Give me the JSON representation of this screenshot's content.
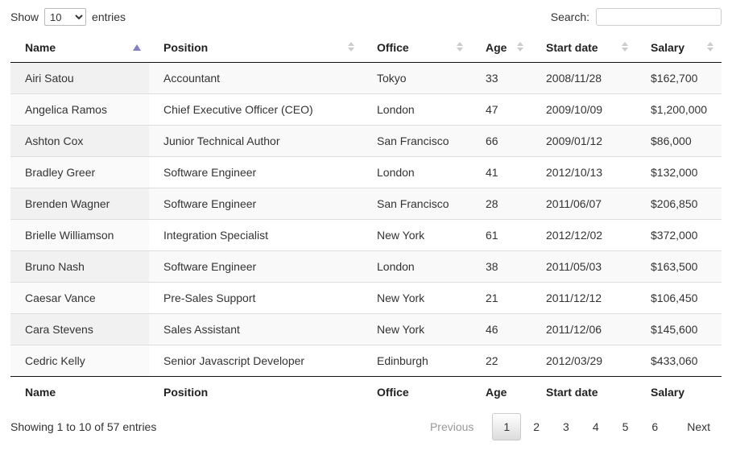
{
  "controls": {
    "show_label": "Show",
    "entries_label": "entries",
    "page_length": "10",
    "search_label": "Search:",
    "search_value": ""
  },
  "table": {
    "columns": [
      {
        "label": "Name",
        "sort": "asc"
      },
      {
        "label": "Position",
        "sort": "none"
      },
      {
        "label": "Office",
        "sort": "none"
      },
      {
        "label": "Age",
        "sort": "none"
      },
      {
        "label": "Start date",
        "sort": "none"
      },
      {
        "label": "Salary",
        "sort": "none"
      }
    ],
    "rows": [
      [
        "Airi Satou",
        "Accountant",
        "Tokyo",
        "33",
        "2008/11/28",
        "$162,700"
      ],
      [
        "Angelica Ramos",
        "Chief Executive Officer (CEO)",
        "London",
        "47",
        "2009/10/09",
        "$1,200,000"
      ],
      [
        "Ashton Cox",
        "Junior Technical Author",
        "San Francisco",
        "66",
        "2009/01/12",
        "$86,000"
      ],
      [
        "Bradley Greer",
        "Software Engineer",
        "London",
        "41",
        "2012/10/13",
        "$132,000"
      ],
      [
        "Brenden Wagner",
        "Software Engineer",
        "San Francisco",
        "28",
        "2011/06/07",
        "$206,850"
      ],
      [
        "Brielle Williamson",
        "Integration Specialist",
        "New York",
        "61",
        "2012/12/02",
        "$372,000"
      ],
      [
        "Bruno Nash",
        "Software Engineer",
        "London",
        "38",
        "2011/05/03",
        "$163,500"
      ],
      [
        "Caesar Vance",
        "Pre-Sales Support",
        "New York",
        "21",
        "2011/12/12",
        "$106,450"
      ],
      [
        "Cara Stevens",
        "Sales Assistant",
        "New York",
        "46",
        "2011/12/06",
        "$145,600"
      ],
      [
        "Cedric Kelly",
        "Senior Javascript Developer",
        "Edinburgh",
        "22",
        "2012/03/29",
        "$433,060"
      ]
    ],
    "footer_columns": [
      "Name",
      "Position",
      "Office",
      "Age",
      "Start date",
      "Salary"
    ]
  },
  "info_text": "Showing 1 to 10 of 57 entries",
  "pagination": {
    "previous_label": "Previous",
    "next_label": "Next",
    "pages": [
      "1",
      "2",
      "3",
      "4",
      "5",
      "6"
    ],
    "current_page": "1"
  },
  "colors": {
    "sort_asc_arrow": "#8282c4",
    "sort_idle_arrow": "#cccccc",
    "table_dark_border": "#111111",
    "row_stripe_odd": "#f9f9f9",
    "sorted_column_odd": "#f1f1f1",
    "current_page_border": "#cacaca",
    "current_page_gradient_end": "#dcdcdc"
  }
}
